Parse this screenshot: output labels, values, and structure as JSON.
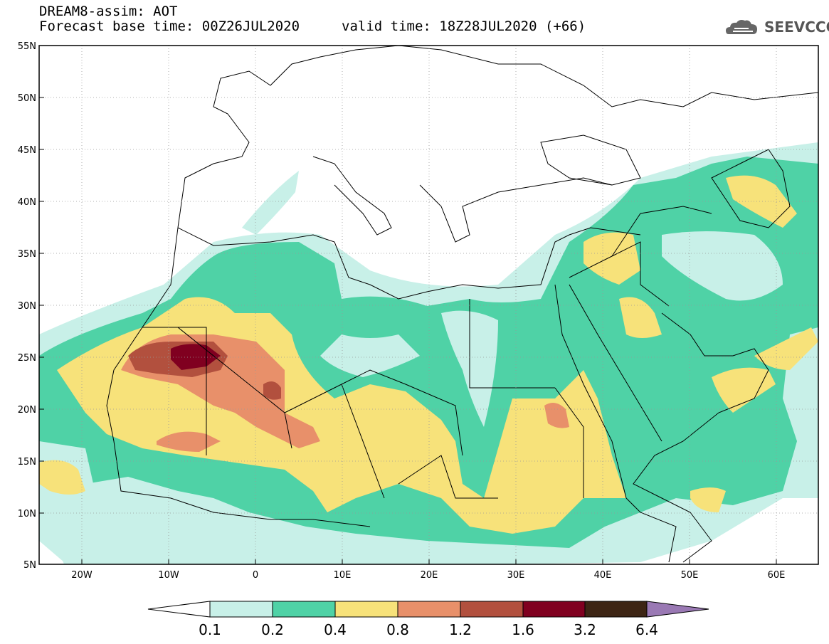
{
  "header": {
    "line1": "DREAM8-assim: AOT",
    "line2": "Forecast base time: 00Z26JUL2020",
    "valid": "valid time: 18Z28JUL2020 (+66)"
  },
  "logo": {
    "text": "SEEVCCC",
    "icon": "cloud-logo-icon"
  },
  "map": {
    "lon_range": [
      -25,
      65
    ],
    "lat_range": [
      5,
      55
    ],
    "lat_ticks": [
      "55N",
      "50N",
      "45N",
      "40N",
      "35N",
      "30N",
      "25N",
      "20N",
      "15N",
      "10N",
      "5N"
    ],
    "lon_ticks": [
      "20W",
      "10W",
      "0",
      "10E",
      "20E",
      "30E",
      "40E",
      "50E",
      "60E"
    ]
  },
  "colorbar": {
    "labels": [
      "0.1",
      "0.2",
      "0.4",
      "0.8",
      "1.2",
      "1.6",
      "3.2",
      "6.4"
    ],
    "colors": [
      "#ffffff",
      "#c8f0e8",
      "#4fd2a6",
      "#f7e27a",
      "#e8906a",
      "#b2503e",
      "#800020",
      "#3d2514",
      "#9a79b4"
    ]
  },
  "colors": {
    "c1": "#c8f0e8",
    "c2": "#4fd2a6",
    "c3": "#f7e27a",
    "c4": "#e8906a",
    "c5": "#b2503e",
    "c6": "#800020"
  }
}
